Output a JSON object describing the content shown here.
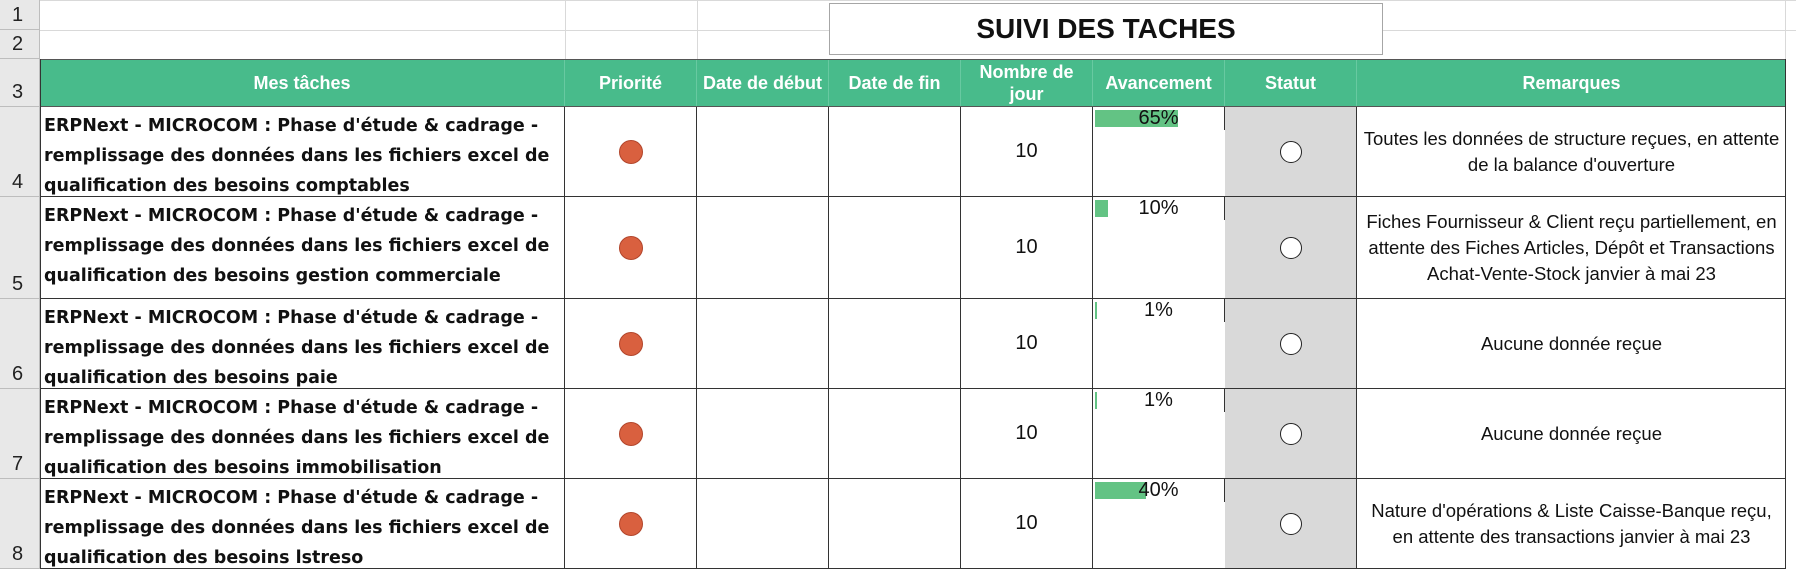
{
  "sheet": {
    "title": "SUIVI DES TACHES",
    "row_numbers": [
      "1",
      "2",
      "3",
      "4",
      "5",
      "6",
      "7",
      "8"
    ],
    "headers": {
      "task": "Mes tâches",
      "priority": "Priorité",
      "start": "Date de début",
      "end": "Date de fin",
      "days": "Nombre de jour",
      "progress": "Avancement",
      "status": "Statut",
      "remarks": "Remarques"
    },
    "colors": {
      "header_bg": "#48bb8b",
      "priority_dot": "#d9603f",
      "progress_bar": "#63c384",
      "status_bg": "#d9d9d9"
    },
    "icons": {
      "priority": "red-circle-icon",
      "status": "empty-circle-icon"
    },
    "rows": [
      {
        "task": "ERPNext - MICROCOM : Phase d'étude & cadrage - remplissage des données dans les fichiers excel de qualification des besoins comptables",
        "start": "",
        "end": "",
        "days": "10",
        "progress_label": "65%",
        "progress": 0.65,
        "remarks": "Toutes les données de structure reçues, en attente de la balance d'ouverture"
      },
      {
        "task": "ERPNext - MICROCOM : Phase d'étude & cadrage - remplissage des données dans les fichiers excel de qualification des besoins gestion commerciale",
        "start": "",
        "end": "",
        "days": "10",
        "progress_label": "10%",
        "progress": 0.1,
        "remarks": "Fiches Fournisseur & Client reçu partiellement, en attente des Fiches Articles, Dépôt et Transactions Achat-Vente-Stock janvier à mai 23"
      },
      {
        "task": "ERPNext - MICROCOM : Phase d'étude & cadrage - remplissage des données dans les fichiers excel de qualification des besoins paie",
        "start": "",
        "end": "",
        "days": "10",
        "progress_label": "1%",
        "progress": 0.01,
        "remarks": "Aucune donnée reçue"
      },
      {
        "task": "ERPNext - MICROCOM : Phase d'étude & cadrage - remplissage des données dans les fichiers excel de qualification des besoins immobilisation",
        "start": "",
        "end": "",
        "days": "10",
        "progress_label": "1%",
        "progress": 0.01,
        "remarks": "Aucune donnée reçue"
      },
      {
        "task": "ERPNext - MICROCOM : Phase d'étude & cadrage - remplissage des données dans les fichiers excel de qualification des besoins lstreso",
        "start": "",
        "end": "",
        "days": "10",
        "progress_label": "40%",
        "progress": 0.4,
        "remarks": "Nature d'opérations & Liste Caisse-Banque reçu, en attente des transactions janvier à mai 23"
      }
    ]
  }
}
